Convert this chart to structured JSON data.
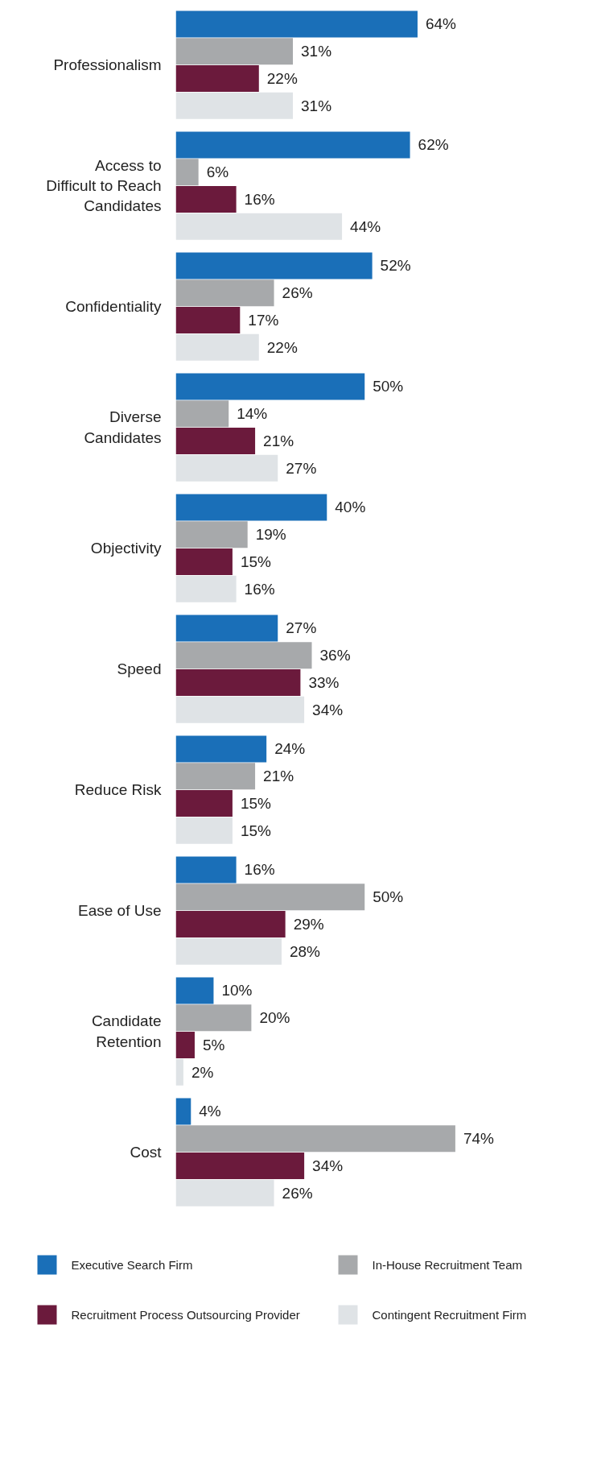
{
  "chart_data": {
    "type": "bar",
    "orientation": "horizontal",
    "legend": "bottom",
    "grid": false,
    "tick_labels": false,
    "categories": [
      "Professionalism",
      "Access to\nDifficult to Reach\nCandidates",
      "Confidentiality",
      "Diverse\nCandidates",
      "Objectivity",
      "Speed",
      "Reduce Risk",
      "Ease of Use",
      "Candidate\nRetention",
      "Cost"
    ],
    "series": [
      {
        "name": "Executive Search Firm",
        "color": "#1a6fb8",
        "values": [
          64,
          62,
          52,
          50,
          40,
          27,
          24,
          16,
          10,
          4
        ],
        "value_labels": [
          "64%",
          "62%",
          "52%",
          "50%",
          "40%",
          "27%",
          "24%",
          "16%",
          "10%",
          "4%"
        ]
      },
      {
        "name": "In-House Recruitment Team",
        "color": "#a7a9ab",
        "values": [
          31,
          6,
          26,
          14,
          19,
          36,
          21,
          50,
          20,
          74
        ],
        "value_labels": [
          "31%",
          "6%",
          "26%",
          "14%",
          "19%",
          "36%",
          "21%",
          "50%",
          "20%",
          "74%"
        ]
      },
      {
        "name": "Recruitment Process Outsourcing Provider",
        "color": "#6b1a3c",
        "values": [
          22,
          16,
          17,
          21,
          15,
          33,
          15,
          29,
          5,
          34
        ],
        "value_labels": [
          "22%",
          "16%",
          "17%",
          "21%",
          "15%",
          "33%",
          "15%",
          "29%",
          "5%",
          "34%"
        ]
      },
      {
        "name": "Contingent Recruitment Firm",
        "color": "#dfe3e6",
        "values": [
          31,
          44,
          22,
          27,
          16,
          34,
          15,
          28,
          2,
          26
        ],
        "value_labels": [
          "31%",
          "44%",
          "22%",
          "27%",
          "16%",
          "34%",
          "15%",
          "28%",
          "2%",
          "26%"
        ]
      }
    ]
  }
}
